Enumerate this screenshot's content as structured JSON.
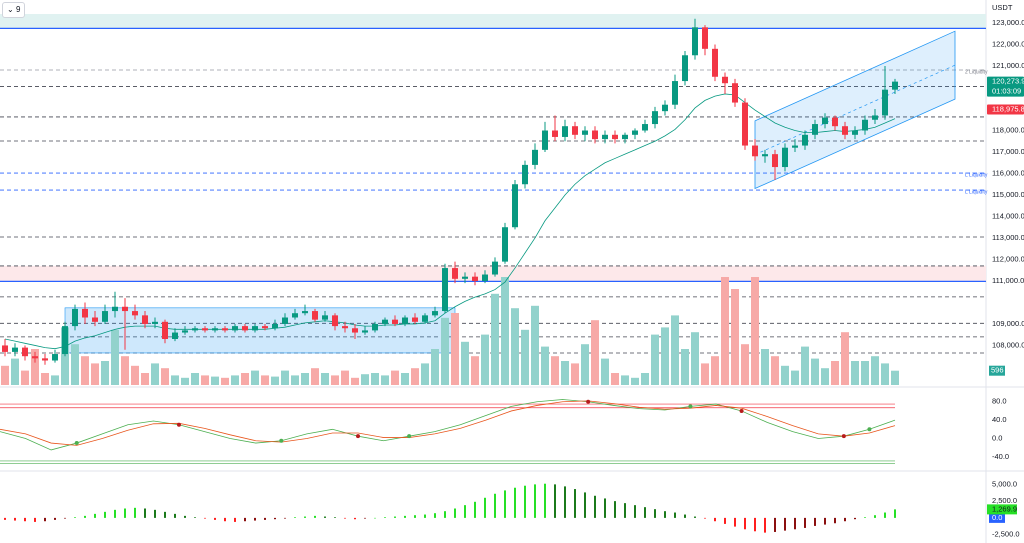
{
  "toolbar": {
    "interval": "9"
  },
  "chart_data": [
    {
      "type": "candlestick",
      "currency": "USDT",
      "ylim": [
        106160,
        123420
      ],
      "yticks": [
        {
          "value": 123000,
          "label": "123,000.0"
        },
        {
          "value": 122000,
          "label": "122,000.0"
        },
        {
          "value": 121000,
          "label": "121,000.0"
        },
        {
          "value": 118000,
          "label": "118,000.0"
        },
        {
          "value": 117000,
          "label": "117,000.0"
        },
        {
          "value": 116000,
          "label": "116,000.0"
        },
        {
          "value": 115000,
          "label": "115,000.0"
        },
        {
          "value": 114000,
          "label": "114,000.0"
        },
        {
          "value": 113000,
          "label": "113,000.0"
        },
        {
          "value": 112000,
          "label": "112,000.0"
        },
        {
          "value": 111000,
          "label": "111,000.0"
        },
        {
          "value": 109000,
          "label": "109,000.0"
        },
        {
          "value": 108000,
          "label": "108,000.0"
        }
      ],
      "up_color": "#089981",
      "down_color": "#f23645",
      "candles": [
        [
          108000,
          108300,
          107500,
          107700
        ],
        [
          107700,
          108100,
          107500,
          107900
        ],
        [
          107900,
          108000,
          107300,
          107500
        ],
        [
          107500,
          107700,
          107200,
          107400
        ],
        [
          107400,
          107600,
          107100,
          107300
        ],
        [
          107300,
          107800,
          107200,
          107600
        ],
        [
          107600,
          109100,
          107500,
          108900
        ],
        [
          108900,
          109900,
          108700,
          109700
        ],
        [
          109700,
          110000,
          109000,
          109300
        ],
        [
          109300,
          109600,
          108900,
          109100
        ],
        [
          109100,
          109900,
          109000,
          109600
        ],
        [
          109600,
          110500,
          109300,
          109800
        ],
        [
          109800,
          110200,
          107800,
          109600
        ],
        [
          109600,
          109900,
          109200,
          109400
        ],
        [
          109400,
          109600,
          108800,
          109000
        ],
        [
          109000,
          109300,
          108800,
          109100
        ],
        [
          109100,
          109200,
          108100,
          108300
        ],
        [
          108300,
          108800,
          108200,
          108600
        ],
        [
          108600,
          108900,
          108500,
          108700
        ],
        [
          108700,
          108900,
          108600,
          108800
        ],
        [
          108800,
          108900,
          108600,
          108700
        ],
        [
          108700,
          108900,
          108600,
          108800
        ],
        [
          108800,
          108900,
          108600,
          108700
        ],
        [
          108700,
          109000,
          108600,
          108900
        ],
        [
          108900,
          109000,
          108600,
          108700
        ],
        [
          108700,
          109000,
          108600,
          108900
        ],
        [
          108900,
          109000,
          108700,
          108800
        ],
        [
          108800,
          109200,
          108700,
          109000
        ],
        [
          109000,
          109500,
          108900,
          109300
        ],
        [
          109300,
          109700,
          109200,
          109500
        ],
        [
          109500,
          109900,
          109400,
          109600
        ],
        [
          109600,
          109700,
          109100,
          109200
        ],
        [
          109200,
          109600,
          109100,
          109400
        ],
        [
          109400,
          109500,
          108700,
          108900
        ],
        [
          108900,
          109100,
          108600,
          108800
        ],
        [
          108800,
          109000,
          108300,
          108600
        ],
        [
          108600,
          108900,
          108500,
          108700
        ],
        [
          108700,
          109100,
          108600,
          109000
        ],
        [
          109000,
          109300,
          108900,
          109200
        ],
        [
          109200,
          109400,
          108900,
          109000
        ],
        [
          109000,
          109400,
          108900,
          109300
        ],
        [
          109300,
          109500,
          109000,
          109100
        ],
        [
          109100,
          109500,
          109000,
          109400
        ],
        [
          109400,
          109800,
          109300,
          109600
        ],
        [
          109600,
          111800,
          109500,
          111600
        ],
        [
          111600,
          111900,
          110900,
          111100
        ],
        [
          111100,
          111400,
          110900,
          111200
        ],
        [
          111200,
          111400,
          110800,
          111000
        ],
        [
          111000,
          111500,
          110900,
          111300
        ],
        [
          111300,
          112100,
          111200,
          111900
        ],
        [
          111900,
          113700,
          111800,
          113500
        ],
        [
          113500,
          115700,
          113400,
          115500
        ],
        [
          115500,
          116600,
          115300,
          116400
        ],
        [
          116400,
          117400,
          116200,
          117100
        ],
        [
          117100,
          118400,
          117000,
          118000
        ],
        [
          118000,
          118700,
          117500,
          117700
        ],
        [
          117700,
          118500,
          117500,
          118200
        ],
        [
          118200,
          118400,
          117600,
          117800
        ],
        [
          117800,
          118200,
          117500,
          118000
        ],
        [
          118000,
          118200,
          117400,
          117600
        ],
        [
          117600,
          118000,
          117400,
          117800
        ],
        [
          117800,
          118000,
          117400,
          117600
        ],
        [
          117600,
          117900,
          117400,
          117800
        ],
        [
          117800,
          118100,
          117600,
          118000
        ],
        [
          118000,
          118500,
          117900,
          118300
        ],
        [
          118300,
          119100,
          118100,
          118900
        ],
        [
          118900,
          119400,
          118700,
          119200
        ],
        [
          119200,
          120600,
          119000,
          120300
        ],
        [
          120300,
          121700,
          120100,
          121500
        ],
        [
          121500,
          123200,
          121300,
          122800
        ],
        [
          122800,
          122900,
          121500,
          121800
        ],
        [
          121800,
          122000,
          120300,
          120500
        ],
        [
          120500,
          120700,
          119700,
          120200
        ],
        [
          120200,
          120400,
          119100,
          119300
        ],
        [
          119300,
          119500,
          117100,
          117300
        ],
        [
          117300,
          117600,
          116600,
          116800
        ],
        [
          116800,
          117100,
          116500,
          116900
        ],
        [
          116900,
          117100,
          115700,
          116300
        ],
        [
          116300,
          117400,
          116100,
          117200
        ],
        [
          117200,
          117600,
          117000,
          117300
        ],
        [
          117300,
          118000,
          117100,
          117800
        ],
        [
          117800,
          118500,
          117600,
          118300
        ],
        [
          118300,
          118800,
          118100,
          118600
        ],
        [
          118600,
          118700,
          118000,
          118200
        ],
        [
          118200,
          118400,
          117600,
          117800
        ],
        [
          117800,
          118200,
          117600,
          118000
        ],
        [
          118000,
          118700,
          117800,
          118500
        ],
        [
          118500,
          119000,
          118300,
          118700
        ],
        [
          118700,
          121000,
          118500,
          119900
        ],
        [
          119900,
          120400,
          119700,
          120273.9
        ]
      ],
      "ma": {
        "color": "#089981",
        "values": [
          108300,
          108200,
          108100,
          108000,
          107900,
          107850,
          107950,
          108200,
          108350,
          108450,
          108600,
          108750,
          108850,
          108900,
          108900,
          108900,
          108800,
          108750,
          108750,
          108750,
          108750,
          108750,
          108750,
          108750,
          108750,
          108750,
          108750,
          108800,
          108850,
          108950,
          109050,
          109100,
          109150,
          109100,
          109050,
          108950,
          108900,
          108900,
          108950,
          108950,
          109000,
          109000,
          109050,
          109150,
          109500,
          109800,
          110050,
          110250,
          110400,
          110600,
          110950,
          111600,
          112300,
          113000,
          113800,
          114400,
          115000,
          115500,
          115900,
          116200,
          116500,
          116700,
          116900,
          117100,
          117300,
          117500,
          117750,
          118050,
          118500,
          119050,
          119400,
          119600,
          119700,
          119650,
          119300,
          118950,
          118650,
          118350,
          118150,
          118000,
          117900,
          117900,
          117950,
          118000,
          117950,
          118000,
          118050,
          118150,
          118350,
          118550
        ]
      },
      "volume": {
        "ylim": [
          0,
          5000
        ],
        "up_color": "#92d2cc",
        "down_color": "#f7a9a7",
        "label_color": "#26a69a",
        "values": [
          800,
          1100,
          600,
          1500,
          500,
          400,
          2400,
          1700,
          1200,
          900,
          1000,
          2300,
          1200,
          800,
          500,
          900,
          700,
          400,
          300,
          500,
          400,
          350,
          300,
          400,
          500,
          600,
          400,
          350,
          600,
          400,
          500,
          700,
          500,
          400,
          600,
          300,
          450,
          500,
          400,
          600,
          500,
          700,
          900,
          1500,
          2800,
          3000,
          1800,
          1200,
          2100,
          3800,
          4500,
          3200,
          2300,
          3300,
          1600,
          1200,
          1000,
          900,
          1700,
          2700,
          1100,
          500,
          400,
          300,
          500,
          2100,
          2400,
          2900,
          1500,
          2200,
          900,
          1200,
          4500,
          4000,
          1700,
          4500,
          1500,
          1200,
          800,
          600,
          1600,
          1100,
          700,
          1000,
          2200,
          1000,
          1000,
          1200,
          900,
          596
        ]
      },
      "last_price": {
        "value": 120273.9,
        "label": "120,273.9",
        "countdown": "01:03:09",
        "color": "#089981"
      },
      "ma_price": {
        "value": 118975.8,
        "label": "118,975.8",
        "color": "#f23645"
      },
      "levels": [
        {
          "value": 122750,
          "color": "#2962ff",
          "style": "solid"
        },
        {
          "value": 120815,
          "color": "#9598a1",
          "style": "dashed"
        },
        {
          "value": 120050,
          "color": "#434651",
          "style": "dashed"
        },
        {
          "value": 118630,
          "color": "#434651",
          "style": "dashed"
        },
        {
          "value": 117510,
          "color": "#434651",
          "style": "dashed"
        },
        {
          "value": 116020,
          "color": "#2962ff",
          "style": "dashed"
        },
        {
          "value": 115230,
          "color": "#2962ff",
          "style": "dashed"
        },
        {
          "value": 113046,
          "color": "#434651",
          "style": "dashed"
        },
        {
          "value": 111700,
          "color": "#434651",
          "style": "dashed"
        },
        {
          "value": 110980,
          "color": "#2962ff",
          "style": "solid"
        },
        {
          "value": 110260,
          "color": "#434651",
          "style": "dashed"
        },
        {
          "value": 109030,
          "color": "#434651",
          "style": "dashed"
        },
        {
          "value": 108400,
          "color": "#434651",
          "style": "dashed"
        },
        {
          "value": 107650,
          "color": "#434651",
          "style": "dashed"
        }
      ],
      "zones": [
        {
          "from": 122750,
          "to": 123420,
          "color": "#e0f2f1"
        },
        {
          "from": 110980,
          "to": 111700,
          "color": "#fde8ea"
        }
      ],
      "range_box": {
        "start": 6,
        "end": 45,
        "from": 107650,
        "to": 109750,
        "color": "#2196f3"
      },
      "channel": {
        "x": [
          75,
          95
        ],
        "lower": [
          115300,
          119460
        ],
        "upper": [
          118450,
          122620
        ],
        "color": "#2196f3"
      },
      "annotations": [
        {
          "text": "2 Liquidity",
          "value": 120815,
          "color": "#787b86"
        },
        {
          "text": "L Liquidity",
          "value": 116020,
          "color": "#2962ff"
        },
        {
          "text": "L Liquidity",
          "value": 115230,
          "color": "#2962ff"
        }
      ]
    },
    {
      "type": "line",
      "ylim": [
        -60,
        110
      ],
      "yticks": [
        {
          "value": 80,
          "label": "80.0"
        },
        {
          "value": 40,
          "label": "40.0"
        },
        {
          "value": 0,
          "label": "0.0"
        },
        {
          "value": -40,
          "label": "-40.0"
        }
      ],
      "series": [
        {
          "color": "#4caf50",
          "values": [
            15,
            0,
            -25,
            -10,
            10,
            30,
            38,
            30,
            15,
            0,
            -10,
            -5,
            10,
            20,
            5,
            -5,
            5,
            15,
            30,
            50,
            70,
            80,
            85,
            80,
            72,
            65,
            62,
            70,
            75,
            60,
            35,
            15,
            0,
            5,
            20,
            40
          ]
        },
        {
          "color": "#e8561d",
          "values": [
            20,
            10,
            -10,
            -15,
            0,
            18,
            32,
            33,
            22,
            8,
            -5,
            -8,
            0,
            12,
            12,
            2,
            2,
            10,
            22,
            40,
            60,
            72,
            80,
            82,
            76,
            68,
            64,
            66,
            72,
            66,
            48,
            28,
            10,
            5,
            12,
            28
          ]
        }
      ],
      "levels": [
        {
          "value": 75,
          "color": "#f23645"
        },
        {
          "value": 67,
          "color": "#f23645"
        },
        {
          "value": -49,
          "color": "#4caf50"
        },
        {
          "value": -55,
          "color": "#4caf50"
        }
      ]
    },
    {
      "type": "histogram",
      "ylim": [
        -3300,
        6250
      ],
      "yticks": [
        {
          "value": 5000,
          "label": "5,000.0"
        },
        {
          "value": 2500,
          "label": "2,500.0"
        },
        {
          "value": 0,
          "label": "0.0"
        },
        {
          "value": -2500,
          "label": "-2,500.0"
        }
      ],
      "colors": {
        "pos_rising": "#26e026",
        "pos_falling": "#1b7a1b",
        "neg_falling": "#ff1f1f",
        "neg_rising": "#8b0f0f"
      },
      "zero_color": "#2962ff",
      "values": [
        -300,
        -400,
        -500,
        -600,
        -500,
        -300,
        -100,
        100,
        300,
        600,
        900,
        1200,
        1400,
        1500,
        1400,
        1200,
        900,
        600,
        300,
        100,
        -100,
        -300,
        -500,
        -600,
        -500,
        -400,
        -300,
        -200,
        -100,
        100,
        200,
        300,
        200,
        100,
        -100,
        -200,
        -100,
        0,
        100,
        200,
        300,
        400,
        500,
        700,
        1000,
        1400,
        1900,
        2400,
        3000,
        3600,
        4100,
        4500,
        4800,
        5000,
        5100,
        5000,
        4700,
        4300,
        3800,
        3300,
        2900,
        2500,
        2200,
        1900,
        1600,
        1300,
        1000,
        800,
        500,
        200,
        -100,
        -500,
        -900,
        -1300,
        -1700,
        -2000,
        -2200,
        -2100,
        -1900,
        -1700,
        -1500,
        -1200,
        -1000,
        -800,
        -500,
        -200,
        100,
        400,
        800,
        1269.9
      ],
      "last_label": "1,269.9"
    }
  ]
}
